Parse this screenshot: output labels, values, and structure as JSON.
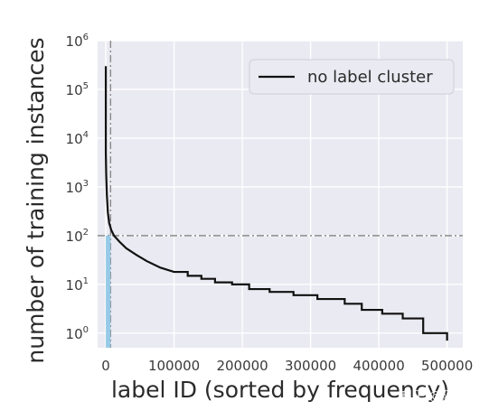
{
  "chart_data": {
    "type": "line",
    "xlabel": "label ID (sorted by frequency)",
    "ylabel": "number of training instances",
    "xlim": [
      -12000,
      523000
    ],
    "ylim_log10": [
      -0.3,
      6
    ],
    "y_scale": "log",
    "grid": true,
    "legend_position": "top-right",
    "x_ticks": [
      {
        "value": 0,
        "label": "0"
      },
      {
        "value": 100000,
        "label": "100000"
      },
      {
        "value": 200000,
        "label": "200000"
      },
      {
        "value": 300000,
        "label": "300000"
      },
      {
        "value": 400000,
        "label": "400000"
      },
      {
        "value": 500000,
        "label": "500000"
      }
    ],
    "y_ticks": [
      {
        "value": 1,
        "base": "10",
        "exp": "0"
      },
      {
        "value": 10,
        "base": "10",
        "exp": "1"
      },
      {
        "value": 100,
        "base": "10",
        "exp": "2"
      },
      {
        "value": 1000,
        "base": "10",
        "exp": "3"
      },
      {
        "value": 10000,
        "base": "10",
        "exp": "4"
      },
      {
        "value": 100000,
        "base": "10",
        "exp": "5"
      },
      {
        "value": 1000000,
        "base": "10",
        "exp": "6"
      }
    ],
    "series": [
      {
        "name": "no label cluster",
        "color": "#111111",
        "x": [
          0,
          0,
          500,
          1500,
          3000,
          5000,
          8000,
          12000,
          20000,
          30000,
          45000,
          60000,
          80000,
          100000,
          120000,
          140000,
          160000,
          185000,
          210000,
          240000,
          275000,
          310000,
          350000,
          375000,
          405000,
          435000,
          465000,
          500000,
          500000
        ],
        "y": [
          300000,
          5000,
          2000,
          700,
          300,
          180,
          130,
          100,
          75,
          55,
          40,
          30,
          22,
          18,
          15,
          13,
          11,
          10,
          8,
          7,
          6,
          5,
          4,
          3,
          2.5,
          2,
          1,
          1,
          0.7
        ]
      }
    ],
    "reference_lines": [
      {
        "orientation": "horizontal",
        "value": 100,
        "style": "dash-dot",
        "color": "#8a8a8a"
      },
      {
        "orientation": "vertical",
        "value": 7000,
        "style": "dash-dot",
        "color": "#8a8a8a"
      }
    ],
    "highlight_region": {
      "x_range": [
        0,
        7000
      ],
      "y_max": 100,
      "color": "#8ec6e6"
    }
  },
  "watermark": "知乎 @阿色"
}
